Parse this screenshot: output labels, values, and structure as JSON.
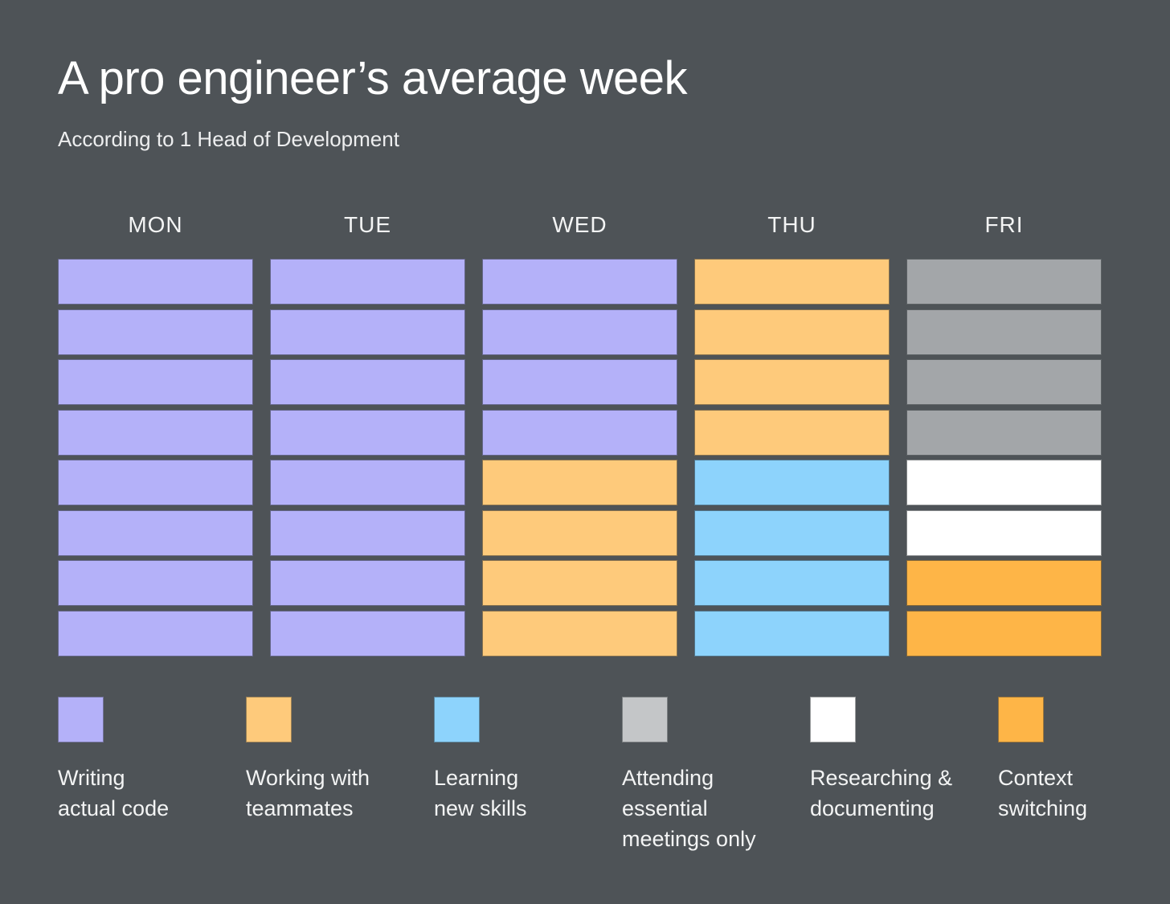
{
  "palette": {
    "background": "#4E5357",
    "cell": {
      "code": "#B4B1F9",
      "teammates": "#FECA7B",
      "learning": "#8DD3FC",
      "meetings": "#A3A6A9",
      "research": "#FFFFFF",
      "context": "#FEB547"
    },
    "legend": {
      "code": "#B4B1F9",
      "teammates": "#FECA7B",
      "learning": "#8DD3FC",
      "meetings": "#C4C6C8",
      "research": "#FFFFFF",
      "context": "#FEB547"
    }
  },
  "chart_data": {
    "type": "heatmap",
    "title": "A pro engineer’s average week",
    "subtitle": "According to 1 Head of Development",
    "categories": [
      "MON",
      "TUE",
      "WED",
      "THU",
      "FRI"
    ],
    "blocks_per_day": 8,
    "series": [
      {
        "day": "MON",
        "blocks": [
          "code",
          "code",
          "code",
          "code",
          "code",
          "code",
          "code",
          "code"
        ]
      },
      {
        "day": "TUE",
        "blocks": [
          "code",
          "code",
          "code",
          "code",
          "code",
          "code",
          "code",
          "code"
        ]
      },
      {
        "day": "WED",
        "blocks": [
          "code",
          "code",
          "code",
          "code",
          "teammates",
          "teammates",
          "teammates",
          "teammates"
        ]
      },
      {
        "day": "THU",
        "blocks": [
          "teammates",
          "teammates",
          "teammates",
          "teammates",
          "learning",
          "learning",
          "learning",
          "learning"
        ]
      },
      {
        "day": "FRI",
        "blocks": [
          "meetings",
          "meetings",
          "meetings",
          "meetings",
          "research",
          "research",
          "context",
          "context"
        ]
      }
    ],
    "legend_entries": [
      {
        "key": "code",
        "label": "Writing\nactual code"
      },
      {
        "key": "teammates",
        "label": "Working with\nteammates"
      },
      {
        "key": "learning",
        "label": "Learning\nnew skills"
      },
      {
        "key": "meetings",
        "label": "Attending\nessential\nmeetings only"
      },
      {
        "key": "research",
        "label": "Researching &\ndocumenting"
      },
      {
        "key": "context",
        "label": "Context\nswitching"
      }
    ],
    "hours_summary": {
      "Writing actual code": 20,
      "Working with teammates": 8,
      "Learning new skills": 4,
      "Attending essential meetings only": 4,
      "Researching & documenting": 2,
      "Context switching": 2
    }
  }
}
